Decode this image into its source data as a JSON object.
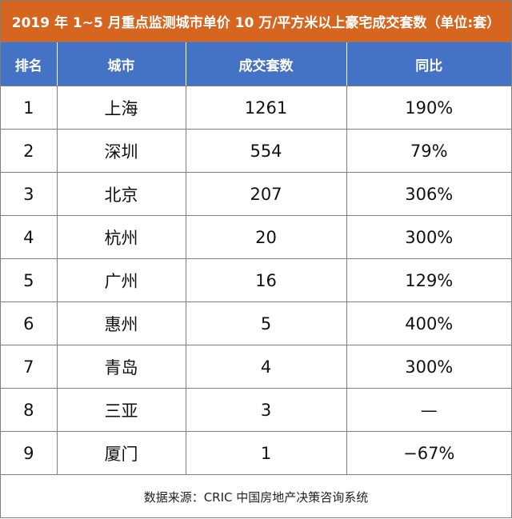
{
  "title": "2019 年 1~5 月重点监测城市单价 10 万/平方米以上豪宅成交套数（单位:套）",
  "headers": [
    "排名",
    "城市",
    "成交套数",
    "同比"
  ],
  "rows": [
    {
      "rank": "1",
      "city": "上海",
      "units": "1261",
      "yoy": "190%"
    },
    {
      "rank": "2",
      "city": "深圳",
      "units": "554",
      "yoy": "79%"
    },
    {
      "rank": "3",
      "city": "北京",
      "units": "207",
      "yoy": "306%"
    },
    {
      "rank": "4",
      "city": "杭州",
      "units": "20",
      "yoy": "300%"
    },
    {
      "rank": "5",
      "city": "广州",
      "units": "16",
      "yoy": "129%"
    },
    {
      "rank": "6",
      "city": "惠州",
      "units": "5",
      "yoy": "400%"
    },
    {
      "rank": "7",
      "city": "青岛",
      "units": "4",
      "yoy": "300%"
    },
    {
      "rank": "8",
      "city": "三亚",
      "units": "3",
      "yoy": "—"
    },
    {
      "rank": "9",
      "city": "厦门",
      "units": "1",
      "yoy": "−67%"
    }
  ],
  "footer": "数据来源：CRIC 中国房地产决策咨询系统",
  "colors": {
    "title_bg": "#d6661f",
    "header_bg": "#4472c4"
  }
}
